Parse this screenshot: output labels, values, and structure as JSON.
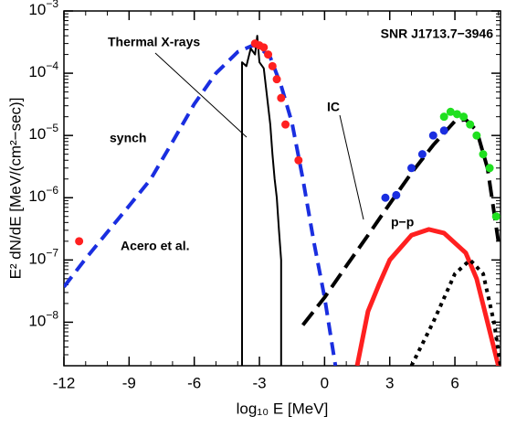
{
  "chart_data": {
    "type": "line",
    "title": "SNR J1713.7−3946",
    "xlabel": "log₁₀ E [MeV]",
    "ylabel": "E² dN/dE [MeV/(cm²−sec)]",
    "xlim": [
      -12,
      8.1
    ],
    "ylim": [
      2e-09,
      0.001
    ],
    "yscale": "log",
    "xticks": [
      -12,
      -9,
      -6,
      -3,
      0,
      3,
      6
    ],
    "yticks": [
      {
        "value": 0.001,
        "label": "10−3"
      },
      {
        "value": 0.0001,
        "label": "10−4"
      },
      {
        "value": 1e-05,
        "label": "10−5"
      },
      {
        "value": 1e-06,
        "label": "10−6"
      },
      {
        "value": 1e-07,
        "label": "10−7"
      },
      {
        "value": 1e-08,
        "label": "10−8"
      }
    ],
    "series": [
      {
        "name": "synch",
        "color": "#1a2ee0",
        "style": "dashed",
        "x": [
          -12,
          -11,
          -10,
          -9,
          -8,
          -7,
          -6,
          -5,
          -4,
          -3.3,
          -3,
          -2.5,
          -2,
          -1.5,
          -1,
          -0.5,
          0,
          0.5
        ],
        "values": [
          3.7e-08,
          1.05e-07,
          2.8e-07,
          7.4e-07,
          2e-06,
          7.9e-06,
          3.2e-05,
          0.0001,
          0.00022,
          0.00028,
          0.00026,
          0.00018,
          6.3e-05,
          1.6e-05,
          2e-06,
          2e-07,
          2.5e-08,
          2e-09
        ]
      },
      {
        "name": "Thermal X-rays",
        "color": "#000000",
        "style": "solid",
        "x": [
          -3.8,
          -3.8,
          -3.6,
          -3.4,
          -3.2,
          -3.1,
          -3.0,
          -2.8,
          -2.6,
          -2.5,
          -2.4,
          -2.3,
          -2.2,
          -2.1,
          -2.0,
          -2.0
        ],
        "values": [
          2e-09,
          0.00015,
          0.00013,
          0.00025,
          0.0002,
          0.0004,
          0.00015,
          0.00012,
          3e-05,
          1.5e-05,
          5e-06,
          2e-06,
          1e-06,
          3e-07,
          1e-07,
          2e-09
        ]
      },
      {
        "name": "IC",
        "color": "#000000",
        "style": "longdash",
        "x": [
          -1,
          0,
          1,
          2,
          3,
          4,
          5,
          6,
          6.5,
          7,
          7.5,
          8
        ],
        "values": [
          9e-09,
          2.5e-08,
          8e-08,
          2.5e-07,
          8e-07,
          2.5e-06,
          7e-06,
          1.7e-05,
          1.8e-05,
          1.2e-05,
          3e-06,
          2e-07
        ]
      },
      {
        "name": "p−p",
        "color": "#ff2020",
        "style": "solid",
        "x": [
          1.5,
          2,
          2.5,
          3,
          4,
          4.8,
          5.5,
          6.5,
          7,
          7.5,
          8
        ],
        "values": [
          2e-09,
          1.5e-08,
          4e-08,
          1e-07,
          2.5e-07,
          3.1e-07,
          2.7e-07,
          1.3e-07,
          5e-08,
          1e-08,
          2e-09
        ]
      },
      {
        "color": "#000000",
        "style": "dotted",
        "x": [
          4,
          5,
          6,
          6.7,
          7.3,
          7.8,
          8.1
        ],
        "values": [
          2e-09,
          1e-08,
          6e-08,
          1e-07,
          6e-08,
          1e-08,
          2e-09
        ]
      },
      {
        "color": "#ff2020",
        "style": "points",
        "x": [
          -3.2,
          -3.0,
          -2.8,
          -2.6,
          -2.4,
          -2.2,
          -2.0,
          -1.8,
          -1.2
        ],
        "values": [
          0.0003,
          0.00028,
          0.00026,
          0.0002,
          0.00013,
          8e-05,
          4e-05,
          1.5e-05,
          4e-06
        ]
      },
      {
        "color": "#1a2ee0",
        "style": "points",
        "x": [
          2.8,
          3.3,
          4,
          4.5,
          5,
          5.5
        ],
        "values": [
          1e-06,
          1.1e-06,
          3e-06,
          5e-06,
          1e-05,
          1.2e-05
        ]
      },
      {
        "color": "#20e020",
        "style": "points",
        "x": [
          5.5,
          5.8,
          6.1,
          6.4,
          6.7,
          7.0,
          7.3,
          7.6,
          7.9
        ],
        "values": [
          2e-05,
          2.4e-05,
          2.2e-05,
          2e-05,
          1.5e-05,
          1e-05,
          5e-06,
          3e-06,
          5e-07
        ]
      },
      {
        "name": "Acero et al.",
        "color": "#ff2020",
        "style": "points",
        "x": [
          -11.3
        ],
        "values": [
          2e-07
        ]
      }
    ]
  }
}
